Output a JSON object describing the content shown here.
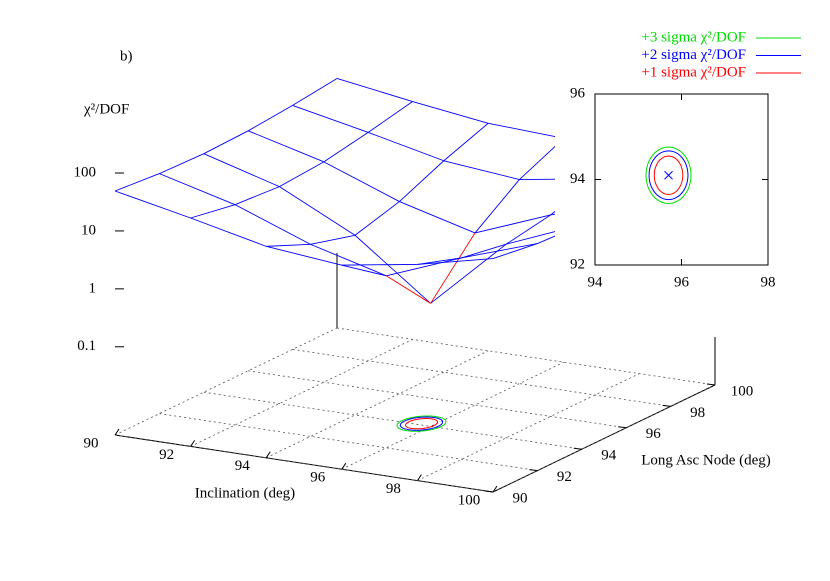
{
  "chart_data": [
    {
      "type": "surface",
      "title": "b)",
      "xlabel": "Inclination (deg)",
      "ylabel": "Long Asc Node (deg)",
      "zlabel": "χ²/DOF",
      "xlim": [
        90,
        100
      ],
      "ylim": [
        90,
        100
      ],
      "zlim": [
        0.003,
        100
      ],
      "zscale": "log",
      "xticks": [
        90,
        92,
        94,
        96,
        98,
        100
      ],
      "yticks": [
        90,
        92,
        94,
        96,
        98,
        100
      ],
      "zticks": [
        0.1,
        1,
        10,
        100
      ],
      "x": [
        90,
        92,
        94,
        96,
        98,
        100
      ],
      "y": [
        90,
        92,
        94,
        96,
        98,
        100
      ],
      "z": [
        [
          48.9,
          26.3,
          13.4,
          10.0,
          16.2,
          32.1
        ],
        [
          41.7,
          19.1,
          6.2,
          2.8,
          9.0,
          24.9
        ],
        [
          39.3,
          16.7,
          3.8,
          0.4,
          6.6,
          22.5
        ],
        [
          41.7,
          19.1,
          6.2,
          2.8,
          9.0,
          24.9
        ],
        [
          48.9,
          26.3,
          13.4,
          10.0,
          16.2,
          32.1
        ],
        [
          60.9,
          38.3,
          25.4,
          22.0,
          28.2,
          44.1
        ]
      ],
      "color": "#0000ff",
      "low_color": "#ff0000",
      "low_threshold": 3,
      "grid": true
    },
    {
      "type": "contour",
      "xlim": [
        94,
        98
      ],
      "ylim": [
        92,
        96
      ],
      "xticks": [
        94,
        96,
        98
      ],
      "yticks": [
        92,
        94,
        96
      ],
      "center": [
        95.7,
        94.1
      ],
      "center_color": "#0000ff",
      "legend": "top",
      "series": [
        {
          "name": "+3 sigma χ²/DOF",
          "color": "#00dd00",
          "rx": 0.52,
          "ry": 0.66
        },
        {
          "name": "+2 sigma χ²/DOF",
          "color": "#0000ff",
          "rx": 0.45,
          "ry": 0.57
        },
        {
          "name": "+1 sigma χ²/DOF",
          "color": "#ff0000",
          "rx": 0.33,
          "ry": 0.45
        }
      ]
    }
  ]
}
